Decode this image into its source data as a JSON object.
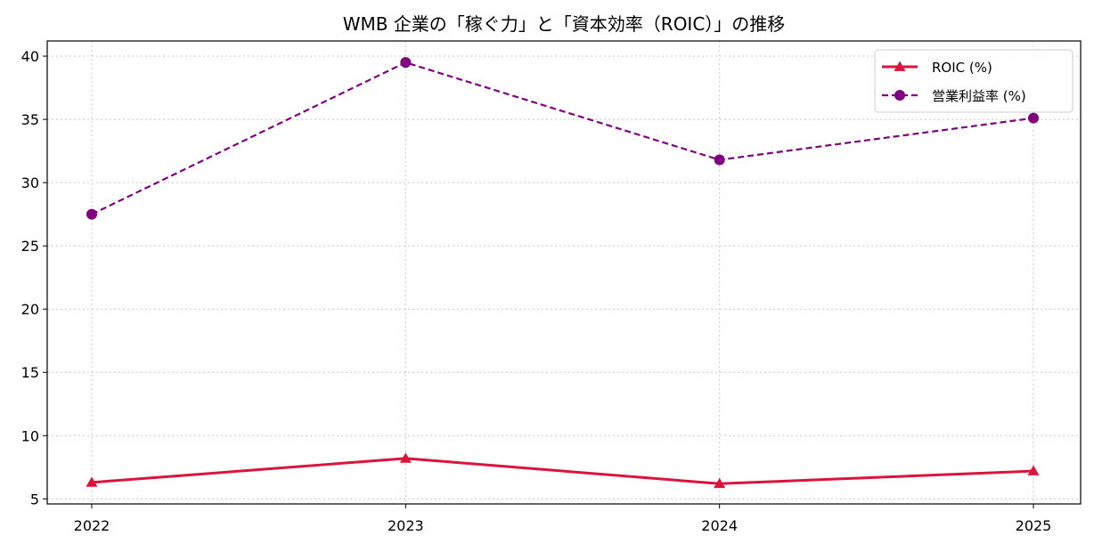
{
  "chart_data": {
    "type": "line",
    "title": "WMB 企業の「稼ぐ力」と「資本効率（ROIC）」の推移",
    "xlabel": "",
    "ylabel": "",
    "categories": [
      "2022",
      "2023",
      "2024",
      "2025"
    ],
    "ylim": [
      4.6,
      41.2
    ],
    "yticks": [
      5,
      10,
      15,
      20,
      25,
      30,
      35,
      40
    ],
    "grid": true,
    "legend_position": "top-right",
    "series": [
      {
        "name": "ROIC (%)",
        "values": [
          6.3,
          8.2,
          6.2,
          7.2
        ],
        "color": "#dc143c",
        "line_style": "solid",
        "marker": "triangle"
      },
      {
        "name": "営業利益率 (%)",
        "values": [
          27.5,
          39.5,
          31.8,
          35.1
        ],
        "color": "#800080",
        "line_style": "dashed",
        "marker": "circle"
      }
    ]
  }
}
